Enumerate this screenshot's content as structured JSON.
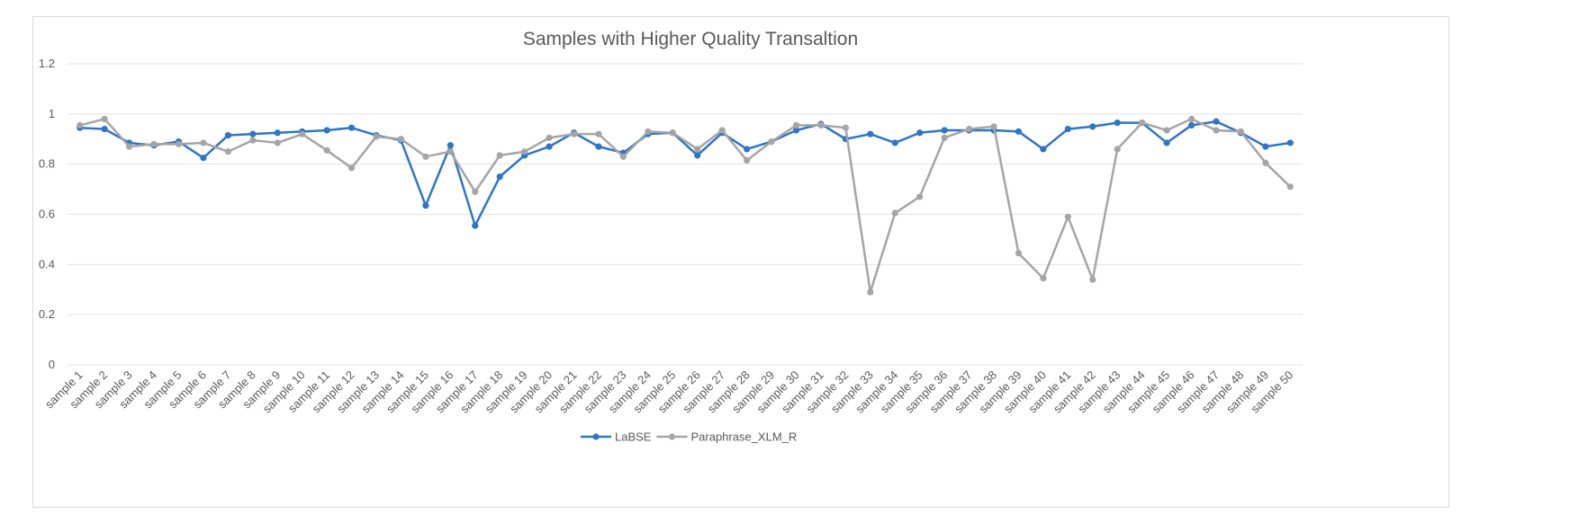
{
  "chart_data": {
    "type": "line",
    "title": "Samples with Higher Quality Transaltion",
    "xlabel": "",
    "ylabel": "",
    "ylim": [
      0,
      1.2
    ],
    "yticks": [
      "0",
      "0.2",
      "0.4",
      "0.6",
      "0.8",
      "1",
      "1.2"
    ],
    "grid": true,
    "legend_position": "bottom",
    "categories": [
      "sample 1",
      "sample 2",
      "sample 3",
      "sample 4",
      "sample 5",
      "sample 6",
      "sample 7",
      "sample 8",
      "sample 9",
      "sample 10",
      "sample 11",
      "sample 12",
      "sample 13",
      "sample 14",
      "sample 15",
      "sample 16",
      "sample 17",
      "sample 18",
      "sample 19",
      "sample 20",
      "sample 21",
      "sample 22",
      "sample 23",
      "sample 24",
      "sample 25",
      "sample 26",
      "sample 27",
      "sample 28",
      "sample 29",
      "sample 30",
      "sample 31",
      "sample 32",
      "sample 33",
      "sample 34",
      "sample 35",
      "sample 36",
      "sample 37",
      "sample 38",
      "sample 39",
      "sample 40",
      "sample 41",
      "sample 42",
      "sample 43",
      "sample 44",
      "sample 45",
      "sample 46",
      "sample 47",
      "sample 48",
      "sample 49",
      "sample 50"
    ],
    "series": [
      {
        "name": "LaBSE",
        "color": "#2e75c7",
        "values": [
          0.945,
          0.94,
          0.885,
          0.875,
          0.89,
          0.825,
          0.915,
          0.92,
          0.925,
          0.93,
          0.935,
          0.945,
          0.915,
          0.895,
          0.635,
          0.875,
          0.555,
          0.75,
          0.835,
          0.87,
          0.925,
          0.87,
          0.845,
          0.92,
          0.925,
          0.835,
          0.925,
          0.86,
          0.89,
          0.935,
          0.96,
          0.9,
          0.92,
          0.885,
          0.925,
          0.935,
          0.935,
          0.935,
          0.93,
          0.86,
          0.94,
          0.95,
          0.965,
          0.965,
          0.885,
          0.955,
          0.97,
          0.925,
          0.87,
          0.885
        ]
      },
      {
        "name": "Paraphrase_XLM_R",
        "color": "#a5a5a5",
        "values": [
          0.955,
          0.98,
          0.87,
          0.88,
          0.88,
          0.885,
          0.85,
          0.895,
          0.885,
          0.92,
          0.855,
          0.785,
          0.91,
          0.9,
          0.83,
          0.85,
          0.69,
          0.835,
          0.85,
          0.905,
          0.92,
          0.92,
          0.83,
          0.93,
          0.925,
          0.86,
          0.935,
          0.815,
          0.89,
          0.955,
          0.955,
          0.945,
          0.29,
          0.605,
          0.67,
          0.905,
          0.94,
          0.95,
          0.445,
          0.345,
          0.59,
          0.34,
          0.86,
          0.965,
          0.935,
          0.98,
          0.935,
          0.93,
          0.805,
          0.71
        ]
      }
    ]
  }
}
